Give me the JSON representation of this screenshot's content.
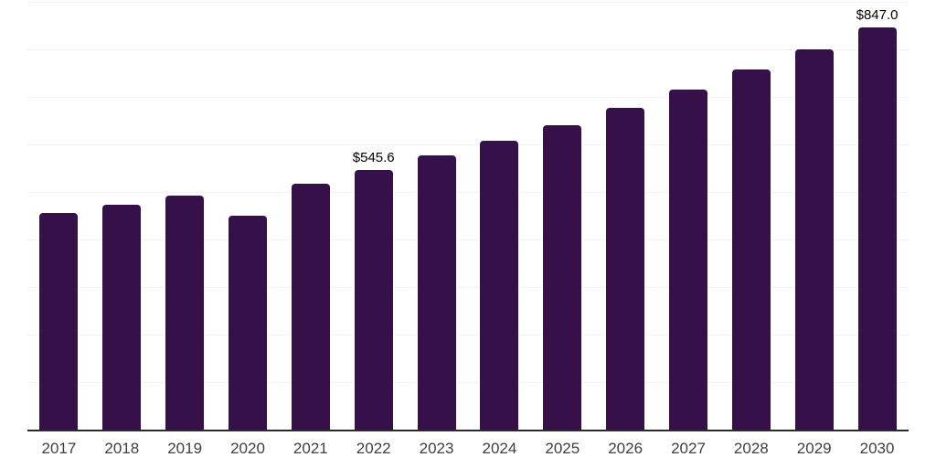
{
  "chart_data": {
    "type": "bar",
    "title": "",
    "xlabel": "",
    "ylabel": "",
    "categories": [
      "2017",
      "2018",
      "2019",
      "2020",
      "2021",
      "2022",
      "2023",
      "2024",
      "2025",
      "2026",
      "2027",
      "2028",
      "2029",
      "2030"
    ],
    "values": [
      455,
      473,
      492,
      450,
      517,
      545.6,
      576,
      607,
      641,
      677,
      716,
      758,
      800,
      847
    ],
    "data_labels": [
      null,
      null,
      null,
      null,
      null,
      "$545.6",
      null,
      null,
      null,
      null,
      null,
      null,
      null,
      "$847.0"
    ],
    "ylim": [
      0,
      900
    ],
    "gridline_step": 100,
    "grid": "horizontal-only",
    "legend_position": "none",
    "y_axis_tick_labels_visible": false,
    "colors": {
      "bar": "#351049",
      "background": "#ffffff",
      "gridline": "#f2f2f2",
      "axis_line": "#2b2b2b",
      "x_tick_label": "#3f3f3f",
      "data_label": "#000000"
    }
  }
}
